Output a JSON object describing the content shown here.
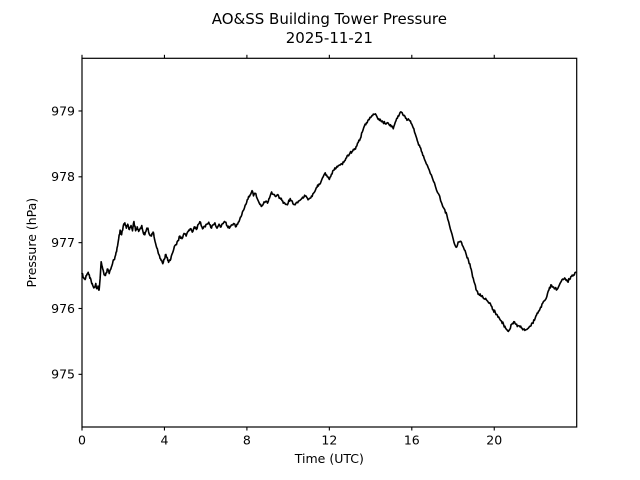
{
  "chart_data": {
    "type": "line",
    "title": "AO&SS Building Tower Pressure",
    "subtitle": "2025-11-21",
    "xlabel": "Time (UTC)",
    "ylabel": "Pressure (hPa)",
    "xlim": [
      0,
      24
    ],
    "ylim": [
      974.2,
      979.8
    ],
    "xticks": [
      0,
      4,
      8,
      12,
      16,
      20
    ],
    "yticks": [
      975,
      976,
      977,
      978,
      979
    ],
    "grid": false,
    "legend": "none",
    "line_color": "#000000",
    "background_color": "#ffffff",
    "series": [
      {
        "name": "pressure",
        "points": [
          [
            0.0,
            976.53
          ],
          [
            0.08,
            976.47
          ],
          [
            0.15,
            976.44
          ],
          [
            0.22,
            976.5
          ],
          [
            0.3,
            976.55
          ],
          [
            0.38,
            976.46
          ],
          [
            0.45,
            976.41
          ],
          [
            0.52,
            976.35
          ],
          [
            0.6,
            976.32
          ],
          [
            0.67,
            976.38
          ],
          [
            0.72,
            976.3
          ],
          [
            0.78,
            976.34
          ],
          [
            0.83,
            976.28
          ],
          [
            0.88,
            976.46
          ],
          [
            0.93,
            976.71
          ],
          [
            0.98,
            976.64
          ],
          [
            1.05,
            976.55
          ],
          [
            1.12,
            976.5
          ],
          [
            1.18,
            976.54
          ],
          [
            1.25,
            976.6
          ],
          [
            1.32,
            976.53
          ],
          [
            1.4,
            976.6
          ],
          [
            1.48,
            976.68
          ],
          [
            1.55,
            976.74
          ],
          [
            1.63,
            976.81
          ],
          [
            1.7,
            976.92
          ],
          [
            1.78,
            977.06
          ],
          [
            1.85,
            977.19
          ],
          [
            1.92,
            977.12
          ],
          [
            2.0,
            977.25
          ],
          [
            2.08,
            977.3
          ],
          [
            2.15,
            977.22
          ],
          [
            2.22,
            977.28
          ],
          [
            2.3,
            977.2
          ],
          [
            2.38,
            977.26
          ],
          [
            2.45,
            977.18
          ],
          [
            2.52,
            977.32
          ],
          [
            2.6,
            977.18
          ],
          [
            2.68,
            977.24
          ],
          [
            2.75,
            977.17
          ],
          [
            2.83,
            977.22
          ],
          [
            2.9,
            977.26
          ],
          [
            2.98,
            977.14
          ],
          [
            3.05,
            977.12
          ],
          [
            3.12,
            977.19
          ],
          [
            3.2,
            977.22
          ],
          [
            3.28,
            977.12
          ],
          [
            3.37,
            977.1
          ],
          [
            3.45,
            977.16
          ],
          [
            3.52,
            977.05
          ],
          [
            3.6,
            976.95
          ],
          [
            3.68,
            976.87
          ],
          [
            3.76,
            976.8
          ],
          [
            3.84,
            976.73
          ],
          [
            3.92,
            976.68
          ],
          [
            4.0,
            976.75
          ],
          [
            4.07,
            976.82
          ],
          [
            4.14,
            976.77
          ],
          [
            4.2,
            976.7
          ],
          [
            4.28,
            976.73
          ],
          [
            4.36,
            976.82
          ],
          [
            4.45,
            976.9
          ],
          [
            4.55,
            976.97
          ],
          [
            4.65,
            977.03
          ],
          [
            4.75,
            977.1
          ],
          [
            4.85,
            977.06
          ],
          [
            4.95,
            977.14
          ],
          [
            5.05,
            977.1
          ],
          [
            5.15,
            977.17
          ],
          [
            5.25,
            977.21
          ],
          [
            5.35,
            977.16
          ],
          [
            5.45,
            977.24
          ],
          [
            5.55,
            977.2
          ],
          [
            5.65,
            977.28
          ],
          [
            5.75,
            977.31
          ],
          [
            5.85,
            977.21
          ],
          [
            5.95,
            977.25
          ],
          [
            6.05,
            977.28
          ],
          [
            6.15,
            977.31
          ],
          [
            6.25,
            977.23
          ],
          [
            6.35,
            977.27
          ],
          [
            6.45,
            977.3
          ],
          [
            6.55,
            977.22
          ],
          [
            6.65,
            977.28
          ],
          [
            6.75,
            977.24
          ],
          [
            6.85,
            977.29
          ],
          [
            6.95,
            977.31
          ],
          [
            7.05,
            977.25
          ],
          [
            7.15,
            977.22
          ],
          [
            7.25,
            977.27
          ],
          [
            7.35,
            977.29
          ],
          [
            7.45,
            977.24
          ],
          [
            7.55,
            977.28
          ],
          [
            7.65,
            977.35
          ],
          [
            7.75,
            977.42
          ],
          [
            7.85,
            977.5
          ],
          [
            7.95,
            977.58
          ],
          [
            8.05,
            977.66
          ],
          [
            8.15,
            977.72
          ],
          [
            8.25,
            977.79
          ],
          [
            8.32,
            977.71
          ],
          [
            8.4,
            977.75
          ],
          [
            8.5,
            977.67
          ],
          [
            8.6,
            977.6
          ],
          [
            8.7,
            977.55
          ],
          [
            8.8,
            977.59
          ],
          [
            8.9,
            977.62
          ],
          [
            9.0,
            977.6
          ],
          [
            9.1,
            977.68
          ],
          [
            9.2,
            977.77
          ],
          [
            9.3,
            977.73
          ],
          [
            9.4,
            977.7
          ],
          [
            9.5,
            977.73
          ],
          [
            9.6,
            977.68
          ],
          [
            9.7,
            977.64
          ],
          [
            9.8,
            977.61
          ],
          [
            9.9,
            977.58
          ],
          [
            10.0,
            977.6
          ],
          [
            10.1,
            977.67
          ],
          [
            10.2,
            977.63
          ],
          [
            10.3,
            977.58
          ],
          [
            10.4,
            977.61
          ],
          [
            10.5,
            977.63
          ],
          [
            10.6,
            977.65
          ],
          [
            10.7,
            977.69
          ],
          [
            10.8,
            977.72
          ],
          [
            10.9,
            977.69
          ],
          [
            11.0,
            977.66
          ],
          [
            11.1,
            977.68
          ],
          [
            11.2,
            977.74
          ],
          [
            11.3,
            977.78
          ],
          [
            11.4,
            977.84
          ],
          [
            11.5,
            977.89
          ],
          [
            11.6,
            977.93
          ],
          [
            11.7,
            978.0
          ],
          [
            11.8,
            978.06
          ],
          [
            11.9,
            978.0
          ],
          [
            12.0,
            977.96
          ],
          [
            12.1,
            978.04
          ],
          [
            12.2,
            978.1
          ],
          [
            12.3,
            978.12
          ],
          [
            12.4,
            978.15
          ],
          [
            12.5,
            978.18
          ],
          [
            12.6,
            978.2
          ],
          [
            12.7,
            978.22
          ],
          [
            12.8,
            978.28
          ],
          [
            12.9,
            978.33
          ],
          [
            13.0,
            978.36
          ],
          [
            13.1,
            978.38
          ],
          [
            13.2,
            978.41
          ],
          [
            13.3,
            978.46
          ],
          [
            13.4,
            978.52
          ],
          [
            13.5,
            978.58
          ],
          [
            13.6,
            978.68
          ],
          [
            13.7,
            978.77
          ],
          [
            13.8,
            978.82
          ],
          [
            13.9,
            978.87
          ],
          [
            14.0,
            978.9
          ],
          [
            14.1,
            978.93
          ],
          [
            14.2,
            978.95
          ],
          [
            14.3,
            978.92
          ],
          [
            14.4,
            978.88
          ],
          [
            14.5,
            978.85
          ],
          [
            14.6,
            978.83
          ],
          [
            14.7,
            978.81
          ],
          [
            14.8,
            978.82
          ],
          [
            14.9,
            978.79
          ],
          [
            15.0,
            978.76
          ],
          [
            15.1,
            978.73
          ],
          [
            15.2,
            978.83
          ],
          [
            15.3,
            978.89
          ],
          [
            15.4,
            978.95
          ],
          [
            15.5,
            978.98
          ],
          [
            15.6,
            978.93
          ],
          [
            15.7,
            978.89
          ],
          [
            15.8,
            978.87
          ],
          [
            15.9,
            978.85
          ],
          [
            16.0,
            978.8
          ],
          [
            16.1,
            978.73
          ],
          [
            16.2,
            978.62
          ],
          [
            16.3,
            978.52
          ],
          [
            16.4,
            978.45
          ],
          [
            16.5,
            978.37
          ],
          [
            16.6,
            978.28
          ],
          [
            16.7,
            978.2
          ],
          [
            16.85,
            978.1
          ],
          [
            17.0,
            977.98
          ],
          [
            17.15,
            977.85
          ],
          [
            17.3,
            977.74
          ],
          [
            17.45,
            977.6
          ],
          [
            17.6,
            977.5
          ],
          [
            17.7,
            977.42
          ],
          [
            17.83,
            977.26
          ],
          [
            17.95,
            977.13
          ],
          [
            18.05,
            977.0
          ],
          [
            18.15,
            976.93
          ],
          [
            18.25,
            977.01
          ],
          [
            18.35,
            977.02
          ],
          [
            18.45,
            976.96
          ],
          [
            18.55,
            976.89
          ],
          [
            18.65,
            976.81
          ],
          [
            18.75,
            976.73
          ],
          [
            18.85,
            976.62
          ],
          [
            18.95,
            976.48
          ],
          [
            19.05,
            976.38
          ],
          [
            19.15,
            976.27
          ],
          [
            19.25,
            976.22
          ],
          [
            19.35,
            976.19
          ],
          [
            19.45,
            976.17
          ],
          [
            19.55,
            976.14
          ],
          [
            19.65,
            976.12
          ],
          [
            19.75,
            976.08
          ],
          [
            19.85,
            976.04
          ],
          [
            19.95,
            975.98
          ],
          [
            20.05,
            975.94
          ],
          [
            20.15,
            975.9
          ],
          [
            20.25,
            975.85
          ],
          [
            20.35,
            975.81
          ],
          [
            20.45,
            975.76
          ],
          [
            20.55,
            975.7
          ],
          [
            20.65,
            975.66
          ],
          [
            20.75,
            975.68
          ],
          [
            20.85,
            975.76
          ],
          [
            20.95,
            975.8
          ],
          [
            21.05,
            975.76
          ],
          [
            21.15,
            975.74
          ],
          [
            21.25,
            975.72
          ],
          [
            21.35,
            975.7
          ],
          [
            21.45,
            975.69
          ],
          [
            21.55,
            975.68
          ],
          [
            21.65,
            975.7
          ],
          [
            21.75,
            975.73
          ],
          [
            21.85,
            975.78
          ],
          [
            21.95,
            975.82
          ],
          [
            22.05,
            975.9
          ],
          [
            22.15,
            975.96
          ],
          [
            22.25,
            976.02
          ],
          [
            22.35,
            976.08
          ],
          [
            22.45,
            976.12
          ],
          [
            22.55,
            976.18
          ],
          [
            22.65,
            976.28
          ],
          [
            22.75,
            976.36
          ],
          [
            22.85,
            976.33
          ],
          [
            22.95,
            976.3
          ],
          [
            23.05,
            976.29
          ],
          [
            23.15,
            976.35
          ],
          [
            23.25,
            976.41
          ],
          [
            23.35,
            976.44
          ],
          [
            23.45,
            976.45
          ],
          [
            23.55,
            976.41
          ],
          [
            23.65,
            976.44
          ],
          [
            23.75,
            976.49
          ],
          [
            23.85,
            976.51
          ],
          [
            23.95,
            976.55
          ]
        ]
      }
    ]
  }
}
